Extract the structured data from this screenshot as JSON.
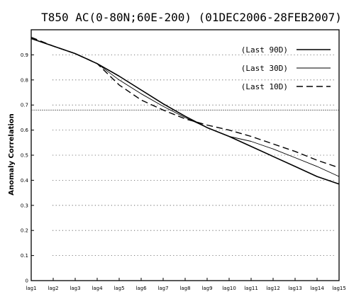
{
  "chart_data": {
    "type": "line",
    "title": "T850 AC(0-80N;60E-200) (01DEC2006-28FEB2007)",
    "xlabel": "",
    "ylabel": "Anomaly Correlation",
    "categories": [
      "lag1",
      "lag2",
      "lag3",
      "lag4",
      "lag5",
      "lag6",
      "lag7",
      "lag8",
      "lag9",
      "lag10",
      "lag11",
      "lag12",
      "lag13",
      "lag14",
      "lag15"
    ],
    "ylim": [
      0,
      1
    ],
    "yticks": [
      "0",
      "0.1",
      "0.2",
      "0.3",
      "0.4",
      "0.5",
      "0.6",
      "0.7",
      "0.8",
      "0.9"
    ],
    "grid": "dotted",
    "legend_position": "top-right",
    "series": [
      {
        "name": "(Last 90D)",
        "style": "solid-thick",
        "color": "#000000",
        "values": [
          0.965,
          0.935,
          0.905,
          0.865,
          0.815,
          0.76,
          0.705,
          0.655,
          0.61,
          0.575,
          0.535,
          0.495,
          0.455,
          0.415,
          0.385
        ]
      },
      {
        "name": "(Last 30D)",
        "style": "solid-thin",
        "color": "#000000",
        "values": [
          0.965,
          0.935,
          0.905,
          0.865,
          0.8,
          0.745,
          0.695,
          0.65,
          0.61,
          0.575,
          0.555,
          0.525,
          0.49,
          0.455,
          0.415
        ]
      },
      {
        "name": "(Last 10D)",
        "style": "dashed",
        "color": "#000000",
        "values": [
          0.97,
          0.935,
          0.905,
          0.865,
          0.78,
          0.72,
          0.68,
          0.645,
          0.62,
          0.6,
          0.575,
          0.545,
          0.515,
          0.48,
          0.45
        ]
      }
    ],
    "reference_line": 0.68
  }
}
